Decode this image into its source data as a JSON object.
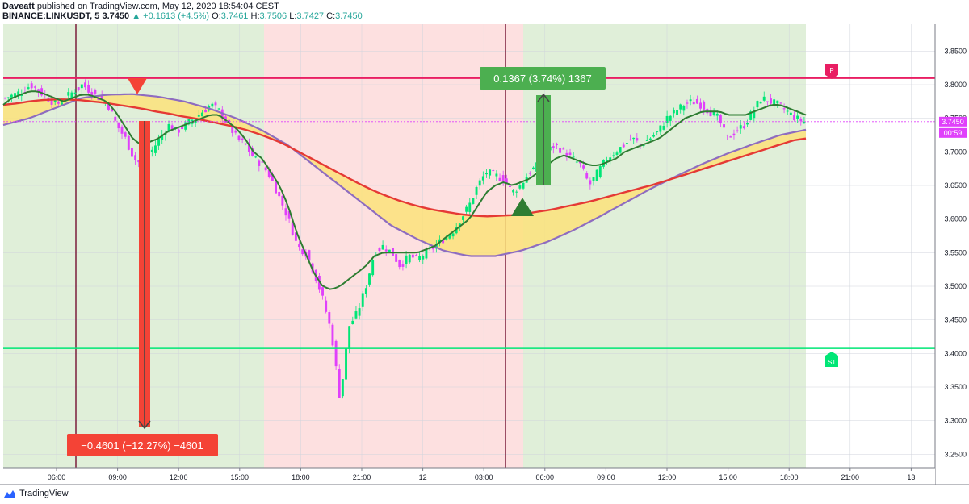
{
  "header": {
    "author": "Daveatt",
    "published_text": "published on TradingView.com, May 12, 2020 18:54:04 CEST",
    "symbol": "BINANCE:LINKUSDT, 5",
    "last": "3.7450",
    "change_up_icon": "triangle-up-icon",
    "change": "+0.1613 (+4.5%)",
    "o_label": "O:",
    "o_value": "3.7461",
    "h_label": "H:",
    "h_value": "3.7506",
    "l_label": "L:",
    "l_value": "3.7427",
    "c_label": "C:",
    "c_value": "3.7450"
  },
  "footer": {
    "brand": "TradingView",
    "icon": "tradingview-logo-icon"
  },
  "colors": {
    "green_zone": "#e0efd9",
    "red_zone": "#fde0e0",
    "pivot_line": "#e91e63",
    "support_line": "#00e676",
    "ema_red": "#e53935",
    "sma_purple": "#8e6cc0",
    "ema_green": "#2e7d32",
    "cloud": "#fbe27a",
    "bull_candle": "#00e676",
    "bear_candle": "#e040fb",
    "short_box": "#f44336",
    "long_box": "#4caf50"
  },
  "chart_data": {
    "type": "candlestick",
    "symbol": "BINANCE:LINKUSDT",
    "interval": "5",
    "ylim": [
      3.23,
      3.89
    ],
    "y_ticks": [
      "3.8500",
      "3.8000",
      "3.7500",
      "3.7000",
      "3.6500",
      "3.6000",
      "3.5500",
      "3.5000",
      "3.4500",
      "3.4000",
      "3.3500",
      "3.3000",
      "3.2500"
    ],
    "x_ticks": [
      "06:00",
      "09:00",
      "12:00",
      "15:00",
      "18:00",
      "21:00",
      "12",
      "03:00",
      "06:00",
      "09:00",
      "12:00",
      "15:00",
      "18:00",
      "21:00",
      "13"
    ],
    "price_label": {
      "value": "3.7450",
      "countdown": "00:59"
    },
    "pivot_label": "P",
    "pivot_value": 3.81,
    "support_label": "S1",
    "support_value": 3.408,
    "short_label": "−0.4601 (−12.27%) −4601",
    "long_label": "0.1367 (3.74%) 1367",
    "series": [
      {
        "price": [
          3.78,
          3.785,
          3.79,
          3.8,
          3.79,
          3.78,
          3.77,
          3.78,
          3.79,
          3.8,
          3.79,
          3.78,
          3.77,
          3.74,
          3.72,
          3.69,
          3.68,
          3.7,
          3.72,
          3.74,
          3.73,
          3.74,
          3.75,
          3.76,
          3.77,
          3.76,
          3.74,
          3.72,
          3.71,
          3.69,
          3.68,
          3.66,
          3.63,
          3.6,
          3.56,
          3.55,
          3.52,
          3.48,
          3.43,
          3.33,
          3.44,
          3.46,
          3.5,
          3.55,
          3.56,
          3.55,
          3.53,
          3.545,
          3.54,
          3.55,
          3.56,
          3.57,
          3.58,
          3.6,
          3.62,
          3.65,
          3.67,
          3.665,
          3.66,
          3.64,
          3.65,
          3.67,
          3.68,
          3.7,
          3.71,
          3.7,
          3.69,
          3.68,
          3.65,
          3.67,
          3.69,
          3.7,
          3.71,
          3.72,
          3.71,
          3.72,
          3.73,
          3.75,
          3.76,
          3.77,
          3.775,
          3.77,
          3.76,
          3.75,
          3.72,
          3.73,
          3.74,
          3.76,
          3.78,
          3.775,
          3.77,
          3.76,
          3.75,
          3.745
        ]
      },
      {
        "ema_green": [
          3.77,
          3.78,
          3.785,
          3.79,
          3.79,
          3.785,
          3.78,
          3.775,
          3.78,
          3.785,
          3.785,
          3.78,
          3.775,
          3.76,
          3.74,
          3.72,
          3.71,
          3.715,
          3.72,
          3.73,
          3.735,
          3.74,
          3.745,
          3.75,
          3.755,
          3.755,
          3.745,
          3.735,
          3.72,
          3.7,
          3.69,
          3.67,
          3.65,
          3.62,
          3.58,
          3.55,
          3.52,
          3.5,
          3.495,
          3.5,
          3.51,
          3.52,
          3.53,
          3.545,
          3.55,
          3.55,
          3.55,
          3.55,
          3.55,
          3.555,
          3.56,
          3.57,
          3.58,
          3.59,
          3.6,
          3.62,
          3.64,
          3.65,
          3.655,
          3.65,
          3.655,
          3.66,
          3.67,
          3.68,
          3.69,
          3.695,
          3.69,
          3.685,
          3.68,
          3.68,
          3.685,
          3.69,
          3.7,
          3.705,
          3.71,
          3.715,
          3.72,
          3.73,
          3.74,
          3.75,
          3.755,
          3.76,
          3.76,
          3.76,
          3.755,
          3.755,
          3.755,
          3.76,
          3.765,
          3.77,
          3.77,
          3.765,
          3.76,
          3.755
        ]
      },
      {
        "ema_red": [
          3.77,
          3.772,
          3.775,
          3.777,
          3.778,
          3.778,
          3.777,
          3.775,
          3.773,
          3.77,
          3.767,
          3.764,
          3.76,
          3.757,
          3.753,
          3.75,
          3.746,
          3.742,
          3.738,
          3.733,
          3.727,
          3.72,
          3.712,
          3.702,
          3.692,
          3.682,
          3.672,
          3.662,
          3.652,
          3.643,
          3.635,
          3.628,
          3.622,
          3.617,
          3.613,
          3.61,
          3.607,
          3.605,
          3.604,
          3.605,
          3.606,
          3.608,
          3.611,
          3.614,
          3.618,
          3.622,
          3.626,
          3.631,
          3.636,
          3.641,
          3.646,
          3.651,
          3.657,
          3.663,
          3.669,
          3.675,
          3.681,
          3.687,
          3.693,
          3.699,
          3.705,
          3.711,
          3.717,
          3.72
        ]
      },
      {
        "sma_purple": [
          3.74,
          3.75,
          3.765,
          3.78,
          3.785,
          3.786,
          3.782,
          3.775,
          3.764,
          3.75,
          3.732,
          3.71,
          3.68,
          3.65,
          3.62,
          3.59,
          3.57,
          3.553,
          3.545,
          3.545,
          3.553,
          3.566,
          3.583,
          3.603,
          3.624,
          3.645,
          3.664,
          3.682,
          3.698,
          3.712,
          3.725,
          3.733
        ]
      }
    ]
  }
}
